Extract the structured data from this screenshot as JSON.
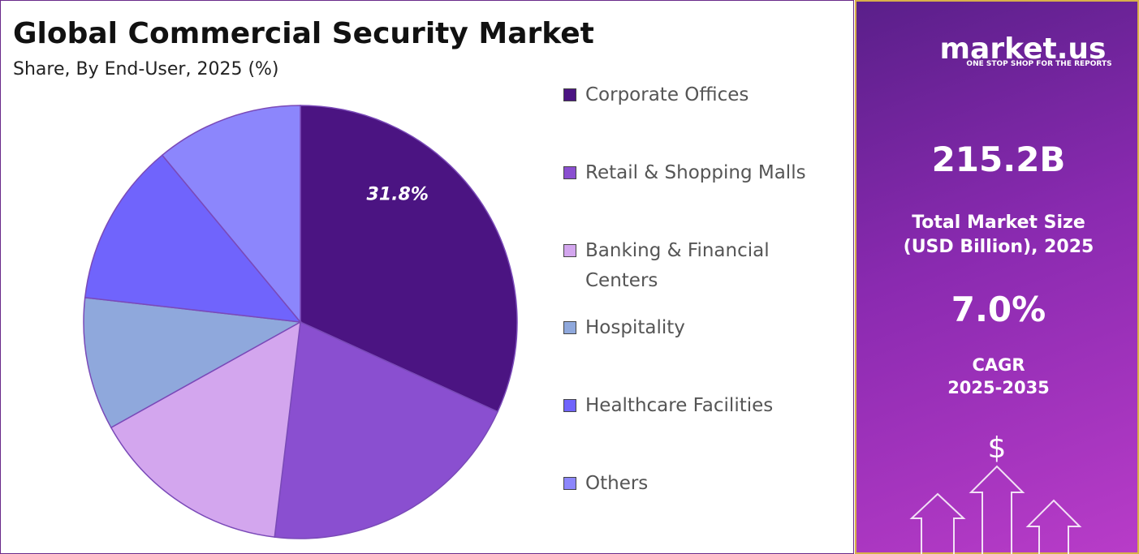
{
  "chart_data": {
    "type": "pie",
    "title": "Global Commercial Security Market",
    "subtitle": "Share, By End-User, 2025 (%)",
    "categories": [
      "Corporate Offices",
      "Retail & Shopping Malls",
      "Banking & Financial Centers",
      "Hospitality",
      "Healthcare Facilities",
      "Others"
    ],
    "values": [
      31.8,
      20.1,
      15.0,
      9.9,
      12.2,
      11.0
    ],
    "value_labels": [
      "31.8%",
      null,
      null,
      null,
      null,
      null
    ],
    "colors": [
      "#4b1482",
      "#8a4fd0",
      "#d3a6ee",
      "#8fa8dc",
      "#7064fc",
      "#8c86fc"
    ]
  },
  "panel": {
    "brand": "market.us",
    "tagline": "ONE STOP SHOP FOR THE REPORTS",
    "market_size": "215.2B",
    "market_size_label": [
      "Total Market Size",
      "(USD Billion), 2025"
    ],
    "cagr": "7.0%",
    "cagr_label": [
      "CAGR",
      "2025-2035"
    ],
    "icon": "$"
  }
}
